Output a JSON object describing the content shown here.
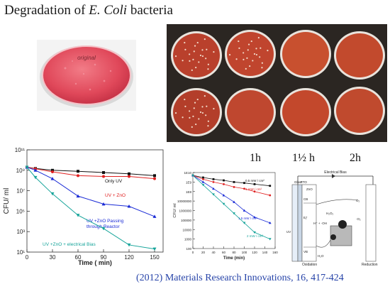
{
  "title": {
    "prefix": "Degradation of ",
    "organism": "E. Coli",
    "suffix": " bacteria"
  },
  "citation": "(2012) Materials Research Innovations, 16, 417-424",
  "time_labels": [
    "1h",
    "1½ h",
    "2h"
  ],
  "photos": {
    "single_dish_label": "original",
    "plate_colors": [
      "#b9402c",
      "#c0452e",
      "#c8502f",
      "#c24a2d",
      "#b33e2a",
      "#bf472f",
      "#c3482c",
      "#c04a2e"
    ]
  },
  "chart_data": [
    {
      "type": "line",
      "ylabel": "CFU/ ml",
      "xlabel": "Time ( min)",
      "xlim": [
        0,
        160
      ],
      "x_ticks": [
        0,
        30,
        60,
        90,
        120,
        150
      ],
      "y_scale": "log",
      "ylim": [
        10,
        100000000000
      ],
      "y_tick_labels": [
        "10¹",
        "10³",
        "10⁵",
        "10⁷",
        "10⁹",
        "10¹¹"
      ],
      "series": [
        {
          "name": "Only UV",
          "color": "#111111",
          "marker": "square",
          "x": [
            0,
            10,
            30,
            60,
            90,
            120,
            150
          ],
          "y": [
            2000000000,
            1500000000,
            1000000000,
            800000000,
            600000000,
            450000000,
            300000000
          ]
        },
        {
          "name": "UV + ZnO",
          "color": "#e02020",
          "marker": "circle",
          "x": [
            0,
            10,
            30,
            60,
            90,
            120,
            150
          ],
          "y": [
            2000000000,
            1400000000,
            700000000,
            300000000,
            250000000,
            250000000,
            150000000
          ]
        },
        {
          "name": "UV +ZnO Passing through Reactor",
          "color": "#1a2bd6",
          "marker": "triangle-up",
          "x": [
            0,
            10,
            30,
            60,
            90,
            120,
            150
          ],
          "y": [
            2000000000,
            1000000000,
            150000000,
            3000000,
            500000,
            300000,
            30000
          ]
        },
        {
          "name": "UV +ZnO + electrical Bias",
          "color": "#16a49a",
          "marker": "triangle-down",
          "x": [
            0,
            10,
            30,
            60,
            90,
            120,
            150
          ],
          "y": [
            2000000000,
            200000000,
            5000000,
            40000,
            2000,
            50,
            20
          ]
        }
      ]
    },
    {
      "type": "line",
      "ylabel": "CFU/ ml",
      "xlabel": "Time (min)",
      "xlim": [
        0,
        160
      ],
      "x_ticks": [
        0,
        20,
        40,
        60,
        80,
        100,
        120,
        140,
        160
      ],
      "y_scale": "log",
      "ylim": [
        100,
        10000000000
      ],
      "y_tick_labels": [
        "1E10",
        "1E9",
        "1E8",
        "10000000",
        "1000000",
        "100000",
        "10000",
        "1000",
        "100"
      ],
      "series": [
        {
          "name": "0.5 mW / cm²",
          "color": "#111111",
          "marker": "square",
          "x": [
            0,
            20,
            40,
            60,
            80,
            100,
            120,
            150
          ],
          "y": [
            5000000000,
            3000000000,
            2000000000,
            1500000000,
            1000000000,
            800000000,
            600000000,
            400000000
          ]
        },
        {
          "name": "1 mW / cm²",
          "color": "#e02020",
          "marker": "circle",
          "x": [
            0,
            20,
            40,
            60,
            80,
            100,
            120,
            150
          ],
          "y": [
            5000000000,
            2000000000,
            1000000000,
            600000000,
            300000000,
            200000000,
            100000000,
            40000000
          ]
        },
        {
          "name": "1.5 mW / cm²",
          "color": "#1a2bd6",
          "marker": "triangle-up",
          "x": [
            0,
            20,
            40,
            60,
            80,
            100,
            120,
            150
          ],
          "y": [
            5000000000,
            1000000000,
            200000000,
            40000000,
            8000000,
            1000000,
            200000,
            50000
          ]
        },
        {
          "name": "2 mW / cm²",
          "color": "#16a49a",
          "marker": "triangle-down",
          "x": [
            0,
            20,
            40,
            60,
            80,
            100,
            120,
            150
          ],
          "y": [
            5000000000,
            500000000,
            50000000,
            5000000,
            500000,
            50000,
            5000,
            1000
          ]
        }
      ]
    }
  ],
  "schematic": {
    "top_label": "Electrical Bias",
    "left_labels": [
      "Glass",
      "FTO",
      "ZnO",
      "CB",
      "Eƒ",
      "UV",
      "VB",
      "Oxidation"
    ],
    "right_labels": [
      "O₂",
      "·O₂",
      "Reduction"
    ],
    "center_labels": [
      "H₂O₂",
      "H⁺ + ·OH",
      "H₂O"
    ]
  }
}
